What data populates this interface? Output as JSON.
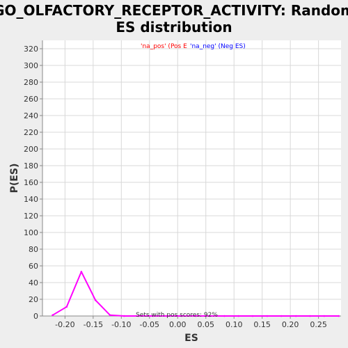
{
  "title_line1": "GO_OLFACTORY_RECEPTOR_ACTIVITY: Random",
  "title_line2": "ES distribution",
  "legend": {
    "pos_label": "'na_pos' (Pos E",
    "neg_label": "'na_neg' (Neg ES)",
    "pos_color": "#ff0000",
    "neg_color": "#0000ff"
  },
  "annotation": "Sets with pos scores: 92%",
  "chart_data": {
    "type": "line",
    "title": "GO_OLFACTORY_RECEPTOR_ACTIVITY: Random ES distribution",
    "xlabel": "ES",
    "ylabel": "P(ES)",
    "xlim": [
      -0.24,
      0.29
    ],
    "ylim": [
      0,
      330
    ],
    "xticks": [
      -0.2,
      -0.15,
      -0.1,
      -0.05,
      0.0,
      0.05,
      0.1,
      0.15,
      0.2,
      0.25
    ],
    "xtick_labels": [
      "-0.20",
      "-0.15",
      "-0.10",
      "-0.05",
      "0.00",
      "0.05",
      "0.10",
      "0.15",
      "0.20",
      "0.25"
    ],
    "yticks": [
      0,
      20,
      40,
      60,
      80,
      100,
      120,
      140,
      160,
      180,
      200,
      220,
      240,
      260,
      280,
      300,
      320
    ],
    "grid": true,
    "legend_position": "top",
    "series": [
      {
        "color": "#ff00ff",
        "x": [
          -0.222,
          -0.197,
          -0.171,
          -0.146,
          -0.12,
          -0.095,
          -0.07,
          -0.044,
          -0.019,
          0.007,
          0.032,
          0.057,
          0.083,
          0.108,
          0.133,
          0.159,
          0.184,
          0.21,
          0.235,
          0.26,
          0.286
        ],
        "y": [
          1,
          11,
          53,
          19,
          1,
          0,
          0,
          0,
          0,
          0,
          0,
          0,
          0,
          0,
          0,
          0,
          0,
          0,
          0,
          0,
          0
        ]
      }
    ]
  }
}
